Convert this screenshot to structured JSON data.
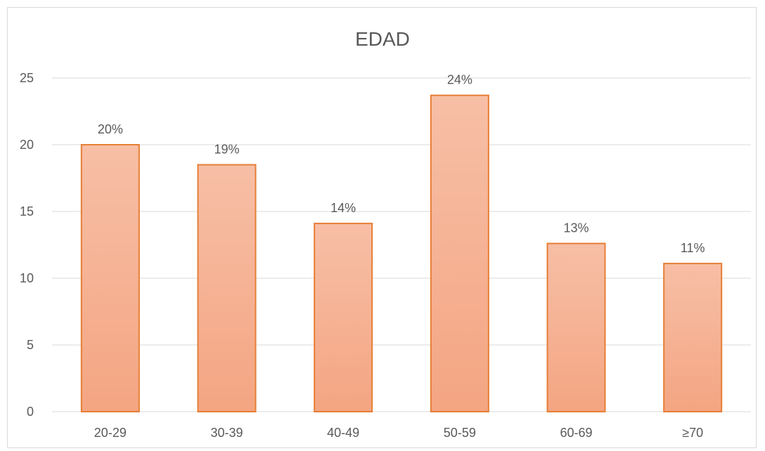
{
  "chart_data": {
    "type": "bar",
    "title": "EDAD",
    "categories": [
      "20-29",
      "30-39",
      "40-49",
      "50-59",
      "60-69",
      "≥70"
    ],
    "values": [
      20,
      18.5,
      14.1,
      23.7,
      12.6,
      11.1
    ],
    "data_labels": [
      "20%",
      "19%",
      "14%",
      "24%",
      "13%",
      "11%"
    ],
    "yticks": [
      0,
      5,
      10,
      15,
      20,
      25
    ],
    "ylim": [
      0,
      25
    ],
    "grid": true,
    "legend": "none",
    "colors": {
      "bar_fill_top": "#f7bfa6",
      "bar_fill_bottom": "#f4a582",
      "bar_stroke": "#e67e35",
      "grid": "#d9d9d9",
      "text": "#595959"
    }
  }
}
